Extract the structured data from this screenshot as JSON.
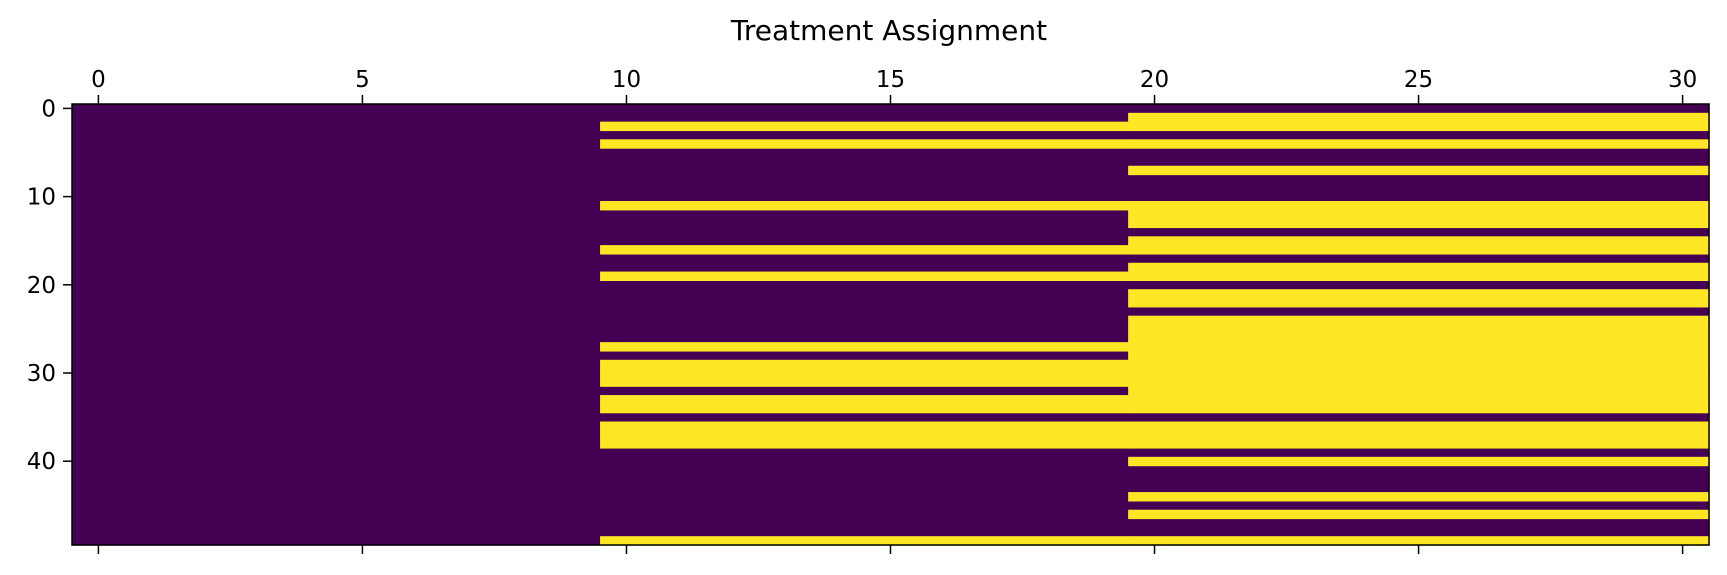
{
  "chart_data": {
    "type": "heatmap",
    "title": "Treatment Assignment",
    "xlabel": "",
    "ylabel": "",
    "x_tick_labels": [
      "0",
      "5",
      "10",
      "15",
      "20",
      "25",
      "30"
    ],
    "x_ticks": [
      0,
      5,
      10,
      15,
      20,
      25,
      30
    ],
    "y_tick_labels": [
      "0",
      "10",
      "20",
      "30",
      "40"
    ],
    "y_ticks": [
      0,
      10,
      20,
      30,
      40
    ],
    "x_axis_position": "top",
    "n_rows": 50,
    "n_cols": 31,
    "colormap": {
      "0": "#440154",
      "1": "#fde725"
    },
    "rows_treated_from_period_10": [
      2,
      4,
      11,
      16,
      19,
      27,
      29,
      30,
      31,
      33,
      34,
      36,
      37,
      38,
      49
    ],
    "rows_treated_from_period_20": [
      1,
      2,
      4,
      7,
      11,
      12,
      13,
      15,
      16,
      18,
      19,
      21,
      22,
      24,
      25,
      26,
      27,
      28,
      29,
      30,
      31,
      32,
      33,
      34,
      36,
      37,
      38,
      40,
      44,
      46,
      49
    ],
    "grid": false,
    "legend": "none"
  }
}
